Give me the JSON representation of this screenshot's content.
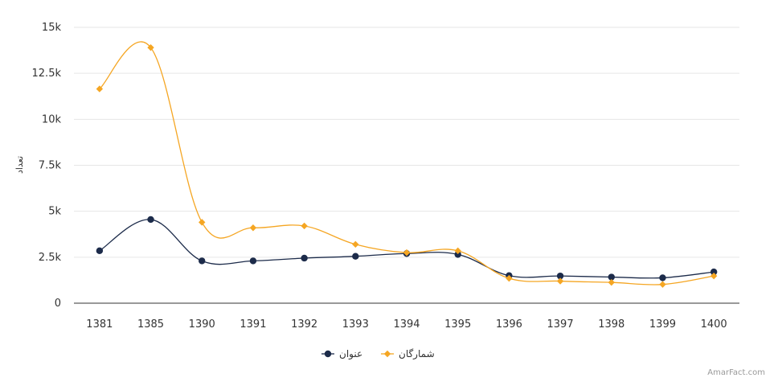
{
  "chart_data": {
    "type": "line",
    "categories": [
      "1381",
      "1385",
      "1390",
      "1391",
      "1392",
      "1393",
      "1394",
      "1395",
      "1396",
      "1397",
      "1398",
      "1399",
      "1400"
    ],
    "ylabel": "تعداد",
    "ylim": [
      0,
      15000
    ],
    "yticks": [
      {
        "value": 0,
        "label": "0"
      },
      {
        "value": 2500,
        "label": "2.5k"
      },
      {
        "value": 5000,
        "label": "5k"
      },
      {
        "value": 7500,
        "label": "7.5k"
      },
      {
        "value": 10000,
        "label": "10k"
      },
      {
        "value": 12500,
        "label": "12.5k"
      },
      {
        "value": 15000,
        "label": "15k"
      }
    ],
    "grid": true,
    "legend_position": "bottom-center",
    "series": [
      {
        "name": "عنوان",
        "color": "#1c2b4a",
        "marker": "circle",
        "values": [
          2850,
          4550,
          2300,
          2300,
          2450,
          2550,
          2700,
          2650,
          1500,
          1480,
          1420,
          1380,
          1700
        ]
      },
      {
        "name": "شمارگان",
        "color": "#f5a623",
        "marker": "diamond",
        "values": [
          11650,
          13900,
          4400,
          4100,
          4200,
          3200,
          2750,
          2850,
          1350,
          1200,
          1130,
          1020,
          1480
        ]
      }
    ]
  },
  "credit": "AmarFact.com"
}
